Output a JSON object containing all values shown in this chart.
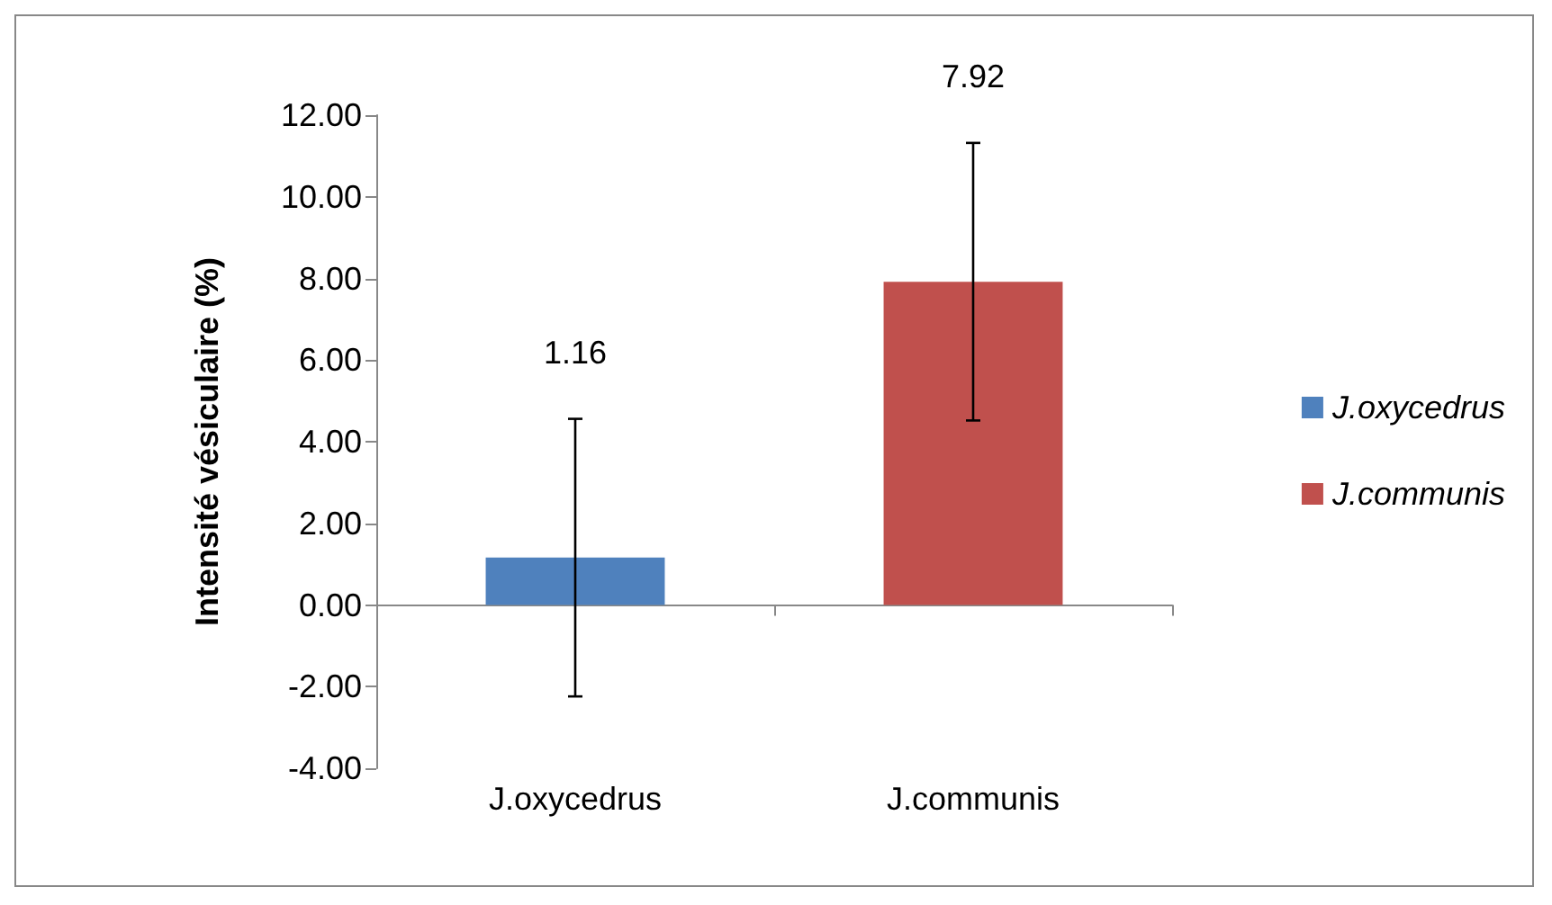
{
  "chart_data": {
    "type": "bar",
    "ylabel": "Intensité vésiculaire (%)",
    "categories": [
      "J.oxycedrus",
      "J.communis"
    ],
    "stacked": true,
    "series": [
      {
        "name": "J.oxycedrus",
        "color": "#4f81bd",
        "values": [
          1.16,
          null
        ],
        "errors": [
          3.4,
          null
        ]
      },
      {
        "name": "J.communis",
        "color": "#c0504d",
        "values": [
          null,
          7.92
        ],
        "errors": [
          null,
          3.4
        ]
      }
    ],
    "ylim": [
      -4,
      12
    ],
    "yticks": [
      {
        "value": -4,
        "label": "-4.00"
      },
      {
        "value": -2,
        "label": "-2.00"
      },
      {
        "value": 0,
        "label": "0.00"
      },
      {
        "value": 2,
        "label": "2.00"
      },
      {
        "value": 4,
        "label": "4.00"
      },
      {
        "value": 6,
        "label": "6.00"
      },
      {
        "value": 8,
        "label": "8.00"
      },
      {
        "value": 10,
        "label": "10.00"
      },
      {
        "value": 12,
        "label": "12.00"
      }
    ],
    "legend": "right",
    "annotations": [
      "1.16",
      "7.92"
    ]
  }
}
